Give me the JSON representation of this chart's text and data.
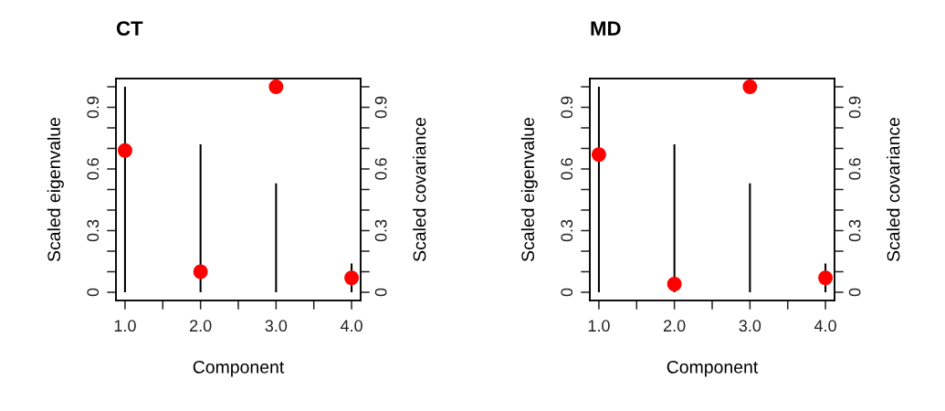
{
  "chart_data": [
    {
      "type": "bar",
      "title": "CT",
      "xlabel": "Component",
      "ylabel": "Scaled eigenvalue",
      "y2label": "Scaled covariance",
      "x": [
        1,
        2,
        3,
        4
      ],
      "xlim": [
        0.88,
        4.12
      ],
      "xticks": [
        {
          "value": 1,
          "label": "1.0"
        },
        {
          "value": 1.5,
          "label": null
        },
        {
          "value": 2,
          "label": "2.0"
        },
        {
          "value": 2.5,
          "label": null
        },
        {
          "value": 3,
          "label": "3.0"
        },
        {
          "value": 3.5,
          "label": null
        },
        {
          "value": 4,
          "label": "4.0"
        }
      ],
      "ylim": [
        -0.04,
        1.04
      ],
      "y2lim": [
        -0.04,
        1.04
      ],
      "yticks": [
        0,
        {
          "value": 0.1,
          "label": null
        },
        {
          "value": 0.2,
          "label": null
        },
        0.3,
        {
          "value": 0.4,
          "label": null
        },
        {
          "value": 0.5,
          "label": null
        },
        0.6,
        {
          "value": 0.7,
          "label": null
        },
        {
          "value": 0.8,
          "label": null
        },
        0.9,
        {
          "value": 1.0,
          "label": null
        }
      ],
      "y2ticks": [
        0,
        {
          "value": 0.1,
          "label": null
        },
        {
          "value": 0.2,
          "label": null
        },
        0.3,
        {
          "value": 0.4,
          "label": null
        },
        {
          "value": 0.5,
          "label": null
        },
        0.6,
        {
          "value": 0.7,
          "label": null
        },
        {
          "value": 0.8,
          "label": null
        },
        0.9,
        {
          "value": 1.0,
          "label": null
        }
      ],
      "series": [
        {
          "color": "#000000",
          "values": [
            1.0,
            0.72,
            0.53,
            0.14
          ]
        },
        {
          "type": "scatter",
          "axis": "y2",
          "color": "#ff0000",
          "marker": "circle",
          "values": [
            0.69,
            0.1,
            1.0,
            0.07
          ]
        }
      ]
    },
    {
      "type": "bar",
      "title": "MD",
      "xlabel": "Component",
      "ylabel": "Scaled eigenvalue",
      "y2label": "Scaled covariance",
      "x": [
        1,
        2,
        3,
        4
      ],
      "xlim": [
        0.88,
        4.12
      ],
      "xticks": [
        {
          "value": 1,
          "label": "1.0"
        },
        {
          "value": 1.5,
          "label": null
        },
        {
          "value": 2,
          "label": "2.0"
        },
        {
          "value": 2.5,
          "label": null
        },
        {
          "value": 3,
          "label": "3.0"
        },
        {
          "value": 3.5,
          "label": null
        },
        {
          "value": 4,
          "label": "4.0"
        }
      ],
      "ylim": [
        -0.04,
        1.04
      ],
      "y2lim": [
        -0.04,
        1.04
      ],
      "yticks": [
        0,
        {
          "value": 0.1,
          "label": null
        },
        {
          "value": 0.2,
          "label": null
        },
        0.3,
        {
          "value": 0.4,
          "label": null
        },
        {
          "value": 0.5,
          "label": null
        },
        0.6,
        {
          "value": 0.7,
          "label": null
        },
        {
          "value": 0.8,
          "label": null
        },
        0.9,
        {
          "value": 1.0,
          "label": null
        }
      ],
      "y2ticks": [
        0,
        {
          "value": 0.1,
          "label": null
        },
        {
          "value": 0.2,
          "label": null
        },
        0.3,
        {
          "value": 0.4,
          "label": null
        },
        {
          "value": 0.5,
          "label": null
        },
        0.6,
        {
          "value": 0.7,
          "label": null
        },
        {
          "value": 0.8,
          "label": null
        },
        0.9,
        {
          "value": 1.0,
          "label": null
        }
      ],
      "series": [
        {
          "color": "#000000",
          "values": [
            1.0,
            0.72,
            0.53,
            0.14
          ]
        },
        {
          "type": "scatter",
          "axis": "y2",
          "color": "#ff0000",
          "marker": "circle",
          "values": [
            0.67,
            0.04,
            1.0,
            0.07
          ]
        }
      ]
    }
  ]
}
